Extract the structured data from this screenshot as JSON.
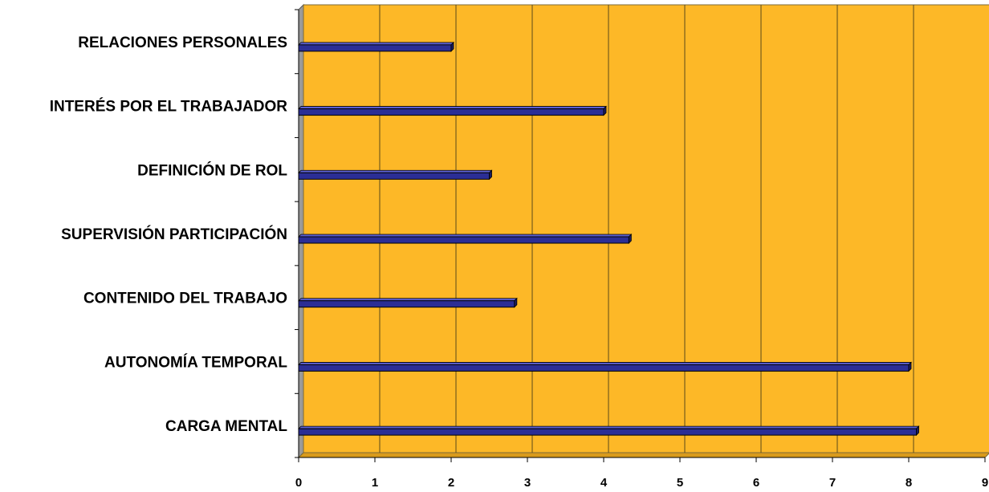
{
  "chart_data": {
    "type": "bar",
    "orientation": "horizontal",
    "categories": [
      "RELACIONES PERSONALES",
      "INTERÉS POR EL TRABAJADOR",
      "DEFINICIÓN DE ROL",
      "SUPERVISIÓN PARTICIPACIÓN",
      "CONTENIDO DEL TRABAJO",
      "AUTONOMÍA TEMPORAL",
      "CARGA MENTAL"
    ],
    "values": [
      2.0,
      4.0,
      2.5,
      4.33,
      2.83,
      8.0,
      8.1
    ],
    "title": "",
    "xlabel": "",
    "ylabel": "",
    "xlim": [
      0,
      9
    ],
    "xticks": [
      "0",
      "1",
      "2",
      "3",
      "4",
      "5",
      "6",
      "7",
      "8",
      "9"
    ],
    "grid": "vertical",
    "legend": "none",
    "colors": {
      "plot_background": "#FDB827",
      "bar_fill": "#2B2E95",
      "bar_top": "#5C60D0",
      "grid_line": "#5A4A1A",
      "wall_side": "#9A9A9A"
    }
  }
}
